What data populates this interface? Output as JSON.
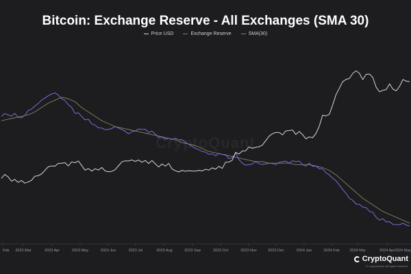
{
  "chart_data": {
    "type": "line",
    "title": "Bitcoin: Exchange Reserve - All Exchanges (SMA 30)",
    "xlabel": "",
    "ylabel": "",
    "x_ticks": [
      "Feb",
      "2023 Mar",
      "2023 Apr",
      "2023 May",
      "2023 Jun",
      "2023 Jul",
      "2023 Aug",
      "2023 Sep",
      "2023 Oct",
      "2023 Nov",
      "2023 Dec",
      "2024 Jan",
      "2024 Feb",
      "2024 Mar",
      "2024 Apr",
      "2024 May"
    ],
    "legend": [
      {
        "name": "Price USD",
        "color": "#d9d9d9"
      },
      {
        "name": "Exchange Reserve",
        "color": "#7c6fe0"
      },
      {
        "name": "SMA(30)",
        "color": "#8a8460"
      }
    ],
    "series": [
      {
        "name": "Price USD",
        "values": [
          22500,
          23200,
          22000,
          21500,
          20800,
          23500,
          24500,
          27800,
          28100,
          29500,
          28200,
          29700,
          28400,
          27000,
          26900,
          27500,
          25500,
          26500,
          30100,
          30500,
          30300,
          29900,
          29300,
          29200,
          29100,
          29400,
          26000,
          26100,
          26000,
          25800,
          25900,
          26300,
          26700,
          27100,
          30000,
          34500,
          35100,
          37000,
          36800,
          37800,
          41900,
          43600,
          42500,
          44500,
          42700,
          42600,
          41600,
          43100,
          51600,
          52000,
          61000,
          67000,
          68500,
          72000,
          68000,
          70500,
          64500,
          63000,
          66000,
          62800,
          68000,
          67000
        ]
      },
      {
        "name": "Exchange Reserve",
        "values": [
          2.312,
          2.313,
          2.314,
          2.311,
          2.316,
          2.319,
          2.323,
          2.326,
          2.328,
          2.324,
          2.32,
          2.314,
          2.312,
          2.31,
          2.306,
          2.304,
          2.303,
          2.305,
          2.303,
          2.3,
          2.302,
          2.303,
          2.301,
          2.3,
          2.298,
          2.297,
          2.297,
          2.296,
          2.293,
          2.29,
          2.288,
          2.286,
          2.285,
          2.286,
          2.283,
          2.287,
          2.28,
          2.279,
          2.281,
          2.279,
          2.28,
          2.279,
          2.281,
          2.28,
          2.281,
          2.279,
          2.28,
          2.278,
          2.276,
          2.272,
          2.268,
          2.262,
          2.256,
          2.252,
          2.25,
          2.247,
          2.243,
          2.242,
          2.24,
          2.238,
          2.239,
          2.237
        ]
      },
      {
        "name": "SMA(30)",
        "values": [
          2.309,
          2.31,
          2.311,
          2.312,
          2.313,
          2.315,
          2.318,
          2.321,
          2.323,
          2.325,
          2.324,
          2.322,
          2.318,
          2.315,
          2.312,
          2.309,
          2.307,
          2.305,
          2.304,
          2.303,
          2.302,
          2.301,
          2.3,
          2.299,
          2.298,
          2.297,
          2.296,
          2.294,
          2.293,
          2.292,
          2.29,
          2.288,
          2.287,
          2.286,
          2.285,
          2.284,
          2.283,
          2.282,
          2.281,
          2.281,
          2.28,
          2.28,
          2.28,
          2.28,
          2.279,
          2.279,
          2.279,
          2.278,
          2.277,
          2.275,
          2.272,
          2.268,
          2.264,
          2.26,
          2.256,
          2.253,
          2.25,
          2.247,
          2.245,
          2.243,
          2.241,
          2.239
        ]
      }
    ],
    "ylim_price": [
      10000,
      80000
    ],
    "ylim_reserve": [
      2.23,
      2.34
    ],
    "grid": false
  },
  "watermark": "CryptoQuant",
  "logo_text": "CryptoQuant",
  "copyright": "© CryptoQuant. All rights reserved."
}
